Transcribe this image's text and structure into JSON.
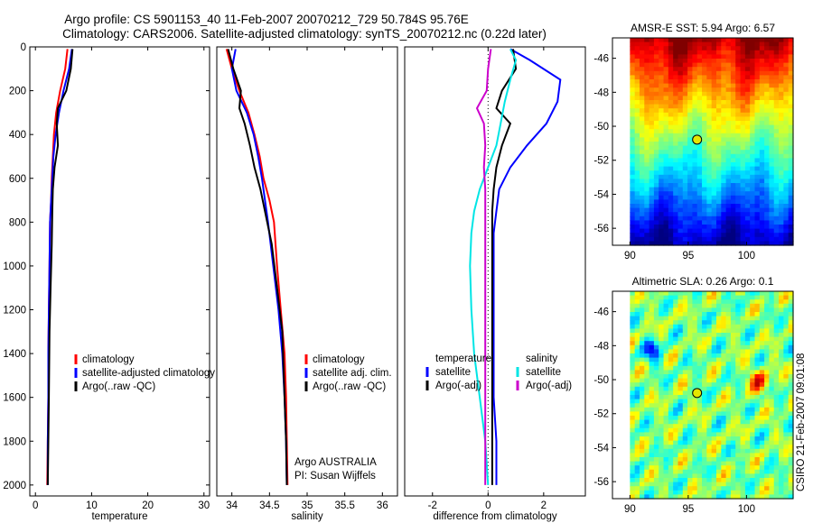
{
  "header": {
    "line1": "Argo profile: CS 5901153_40 11-Feb-2007 20070212_729 50.784S 95.76E",
    "line2": "Climatology: CARS2006. Satellite-adjusted climatology: synTS_20070212.nc (0.22d later)"
  },
  "footer_stamp": "CSIRO 21-Feb-2007 09:01:08",
  "chart_data": [
    {
      "id": "temperature",
      "type": "line",
      "xlabel": "temperature",
      "ylabel": "",
      "xlim": [
        -1,
        31
      ],
      "ylim": [
        2050,
        0
      ],
      "xticks": [
        0,
        10,
        20,
        30
      ],
      "yticks": [
        0,
        200,
        400,
        600,
        800,
        1000,
        1200,
        1400,
        1600,
        1800,
        2000
      ],
      "legend": [
        "climatology",
        "satellite-adjusted climatology",
        "Argo(..raw -QC)"
      ],
      "series": [
        {
          "name": "climatology",
          "color": "#ff0000",
          "x": [
            5.7,
            5.3,
            4.4,
            3.7,
            3.3,
            3.1,
            2.9,
            2.8,
            2.6,
            2.5,
            2.4,
            2.3,
            2.3,
            2.2,
            2.1
          ],
          "y": [
            10,
            100,
            200,
            300,
            400,
            500,
            600,
            700,
            800,
            1000,
            1200,
            1400,
            1600,
            1800,
            2000
          ]
        },
        {
          "name": "satellite-adjusted climatology",
          "color": "#0000ff",
          "x": [
            6.5,
            6.0,
            5.0,
            4.2,
            3.6,
            3.2,
            3.0,
            2.8,
            2.6,
            2.5,
            2.4,
            2.3,
            2.3,
            2.2,
            2.2
          ],
          "y": [
            10,
            100,
            200,
            300,
            400,
            500,
            600,
            700,
            800,
            1000,
            1200,
            1400,
            1600,
            1800,
            2000
          ]
        },
        {
          "name": "Argo(..raw -QC)",
          "color": "#000000",
          "x": [
            6.6,
            6.3,
            5.5,
            4.0,
            3.8,
            4.0,
            3.4,
            3.1,
            3.0,
            2.9,
            2.7,
            2.5,
            2.4,
            2.3,
            2.2
          ],
          "y": [
            10,
            100,
            200,
            280,
            350,
            450,
            550,
            650,
            750,
            900,
            1100,
            1300,
            1600,
            1800,
            2000
          ]
        }
      ]
    },
    {
      "id": "salinity",
      "type": "line",
      "xlabel": "salinity",
      "ylabel": "",
      "xlim": [
        33.8,
        36.2
      ],
      "ylim": [
        2050,
        0
      ],
      "xticks": [
        34,
        34.5,
        35,
        35.5,
        36
      ],
      "yticks": [],
      "legend": [
        "climatology",
        "satellite adj. clim.",
        "Argo(..raw -QC)"
      ],
      "annotation": [
        "Argo AUSTRALIA",
        "PI: Susan Wijffels"
      ],
      "series": [
        {
          "name": "climatology",
          "color": "#ff0000",
          "x": [
            33.93,
            34.0,
            34.1,
            34.22,
            34.3,
            34.37,
            34.42,
            34.5,
            34.56,
            34.6,
            34.65,
            34.7,
            34.72,
            34.73,
            34.74
          ],
          "y": [
            10,
            100,
            200,
            300,
            400,
            500,
            600,
            700,
            800,
            1000,
            1200,
            1400,
            1600,
            1800,
            2000
          ]
        },
        {
          "name": "satellite adj. clim.",
          "color": "#0000ff",
          "x": [
            34.05,
            34.0,
            34.06,
            34.2,
            34.29,
            34.35,
            34.4,
            34.44,
            34.48,
            34.55,
            34.62,
            34.67,
            34.7,
            34.72,
            34.73
          ],
          "y": [
            10,
            100,
            200,
            300,
            400,
            500,
            600,
            700,
            800,
            1000,
            1200,
            1400,
            1600,
            1800,
            2000
          ]
        },
        {
          "name": "Argo(..raw -QC)",
          "color": "#000000",
          "x": [
            33.95,
            34.02,
            34.12,
            34.1,
            34.17,
            34.24,
            34.3,
            34.38,
            34.44,
            34.53,
            34.6,
            34.67,
            34.7,
            34.72,
            34.73
          ],
          "y": [
            10,
            100,
            200,
            280,
            350,
            450,
            550,
            650,
            750,
            900,
            1100,
            1300,
            1600,
            1800,
            2000
          ]
        }
      ]
    },
    {
      "id": "difference",
      "type": "line",
      "xlabel": "difference from climatology",
      "ylabel": "",
      "xlim": [
        -3,
        3.5
      ],
      "ylim": [
        2050,
        0
      ],
      "xticks": [
        -2,
        0,
        2
      ],
      "yticks": [],
      "zero_line": "dotted",
      "legend_groups": [
        {
          "title": "temperature",
          "items": [
            "satellite",
            "Argo(-adj)"
          ]
        },
        {
          "title": "salinity",
          "items": [
            "satellite",
            "Argo(-adj)"
          ]
        }
      ],
      "series": [
        {
          "name": "temperature satellite",
          "color": "#0000ff",
          "x": [
            0.8,
            1.5,
            2.6,
            2.5,
            2.1,
            1.4,
            0.8,
            0.4,
            0.3,
            0.2,
            0.2,
            0.2,
            0.2,
            0.2,
            0.3,
            0.3
          ],
          "y": [
            10,
            60,
            150,
            250,
            350,
            450,
            550,
            650,
            750,
            850,
            1000,
            1200,
            1400,
            1600,
            1800,
            2000
          ]
        },
        {
          "name": "temperature Argo(-adj)",
          "color": "#000000",
          "x": [
            0.9,
            1.0,
            0.5,
            0.3,
            0.8,
            0.5,
            0.3,
            0.2,
            0.15,
            0.15,
            0.15,
            0.15,
            0.15,
            0.15,
            0.15
          ],
          "y": [
            10,
            100,
            200,
            280,
            350,
            450,
            550,
            650,
            750,
            900,
            1100,
            1300,
            1600,
            1800,
            2000
          ]
        },
        {
          "name": "salinity satellite",
          "color": "#00e5e5",
          "x": [
            0.8,
            1.0,
            0.8,
            0.6,
            0.45,
            0.3,
            0.0,
            -0.3,
            -0.5,
            -0.6,
            -0.65,
            -0.6,
            -0.5,
            -0.3,
            -0.1,
            0.0
          ],
          "y": [
            10,
            60,
            150,
            250,
            350,
            450,
            550,
            650,
            750,
            850,
            1000,
            1200,
            1400,
            1600,
            1800,
            2000
          ]
        },
        {
          "name": "salinity Argo(-adj)",
          "color": "#cc00cc",
          "x": [
            0.1,
            0.0,
            -0.05,
            -0.4,
            -0.15,
            -0.1,
            -0.15,
            -0.1,
            -0.1,
            -0.1,
            -0.1,
            -0.1,
            -0.1,
            -0.1,
            -0.1
          ],
          "y": [
            10,
            100,
            200,
            280,
            350,
            450,
            550,
            650,
            750,
            900,
            1100,
            1300,
            1600,
            1800,
            2000
          ]
        }
      ]
    },
    {
      "id": "sst-map",
      "type": "heatmap",
      "title": "AMSR-E SST: 5.94 Argo: 6.57",
      "xlim": [
        88.5,
        104
      ],
      "ylim": [
        -57,
        -44.8
      ],
      "xticks": [
        90,
        95,
        100
      ],
      "yticks": [
        -46,
        -48,
        -50,
        -52,
        -54,
        -56
      ],
      "marker": {
        "lon": 95.76,
        "lat": -50.784
      }
    },
    {
      "id": "sla-map",
      "type": "heatmap",
      "title": "Altimetric SLA: 0.26 Argo: 0.1",
      "xlim": [
        88.5,
        104
      ],
      "ylim": [
        -57,
        -44.8
      ],
      "xticks": [
        90,
        95,
        100
      ],
      "yticks": [
        -46,
        -48,
        -50,
        -52,
        -54,
        -56
      ],
      "marker": {
        "lon": 95.76,
        "lat": -50.784
      }
    }
  ]
}
